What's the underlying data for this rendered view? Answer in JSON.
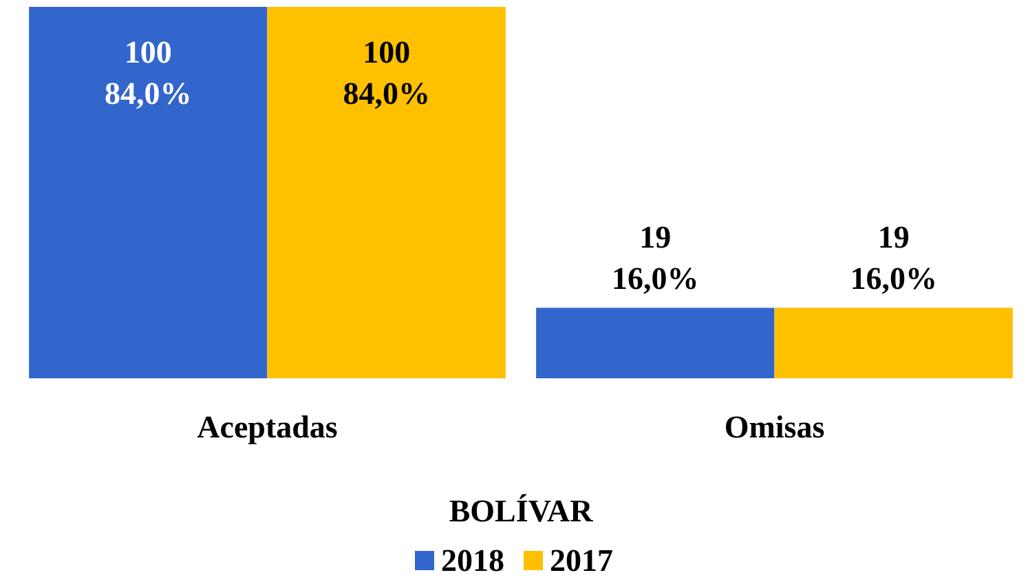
{
  "chart_data": {
    "type": "bar",
    "xlabel": "BOLÍVAR",
    "categories": [
      "Aceptadas",
      "Omisas"
    ],
    "series": [
      {
        "name": "2018",
        "color": "#3366cc",
        "values": [
          100,
          19
        ],
        "value_labels": [
          "100\n84,0%",
          "19\n16,0%"
        ]
      },
      {
        "name": "2017",
        "color": "#ffc000",
        "values": [
          100,
          19
        ],
        "value_labels": [
          "100\n84,0%",
          "19\n16,0%"
        ]
      }
    ],
    "legend": "bottom",
    "grid": false
  }
}
